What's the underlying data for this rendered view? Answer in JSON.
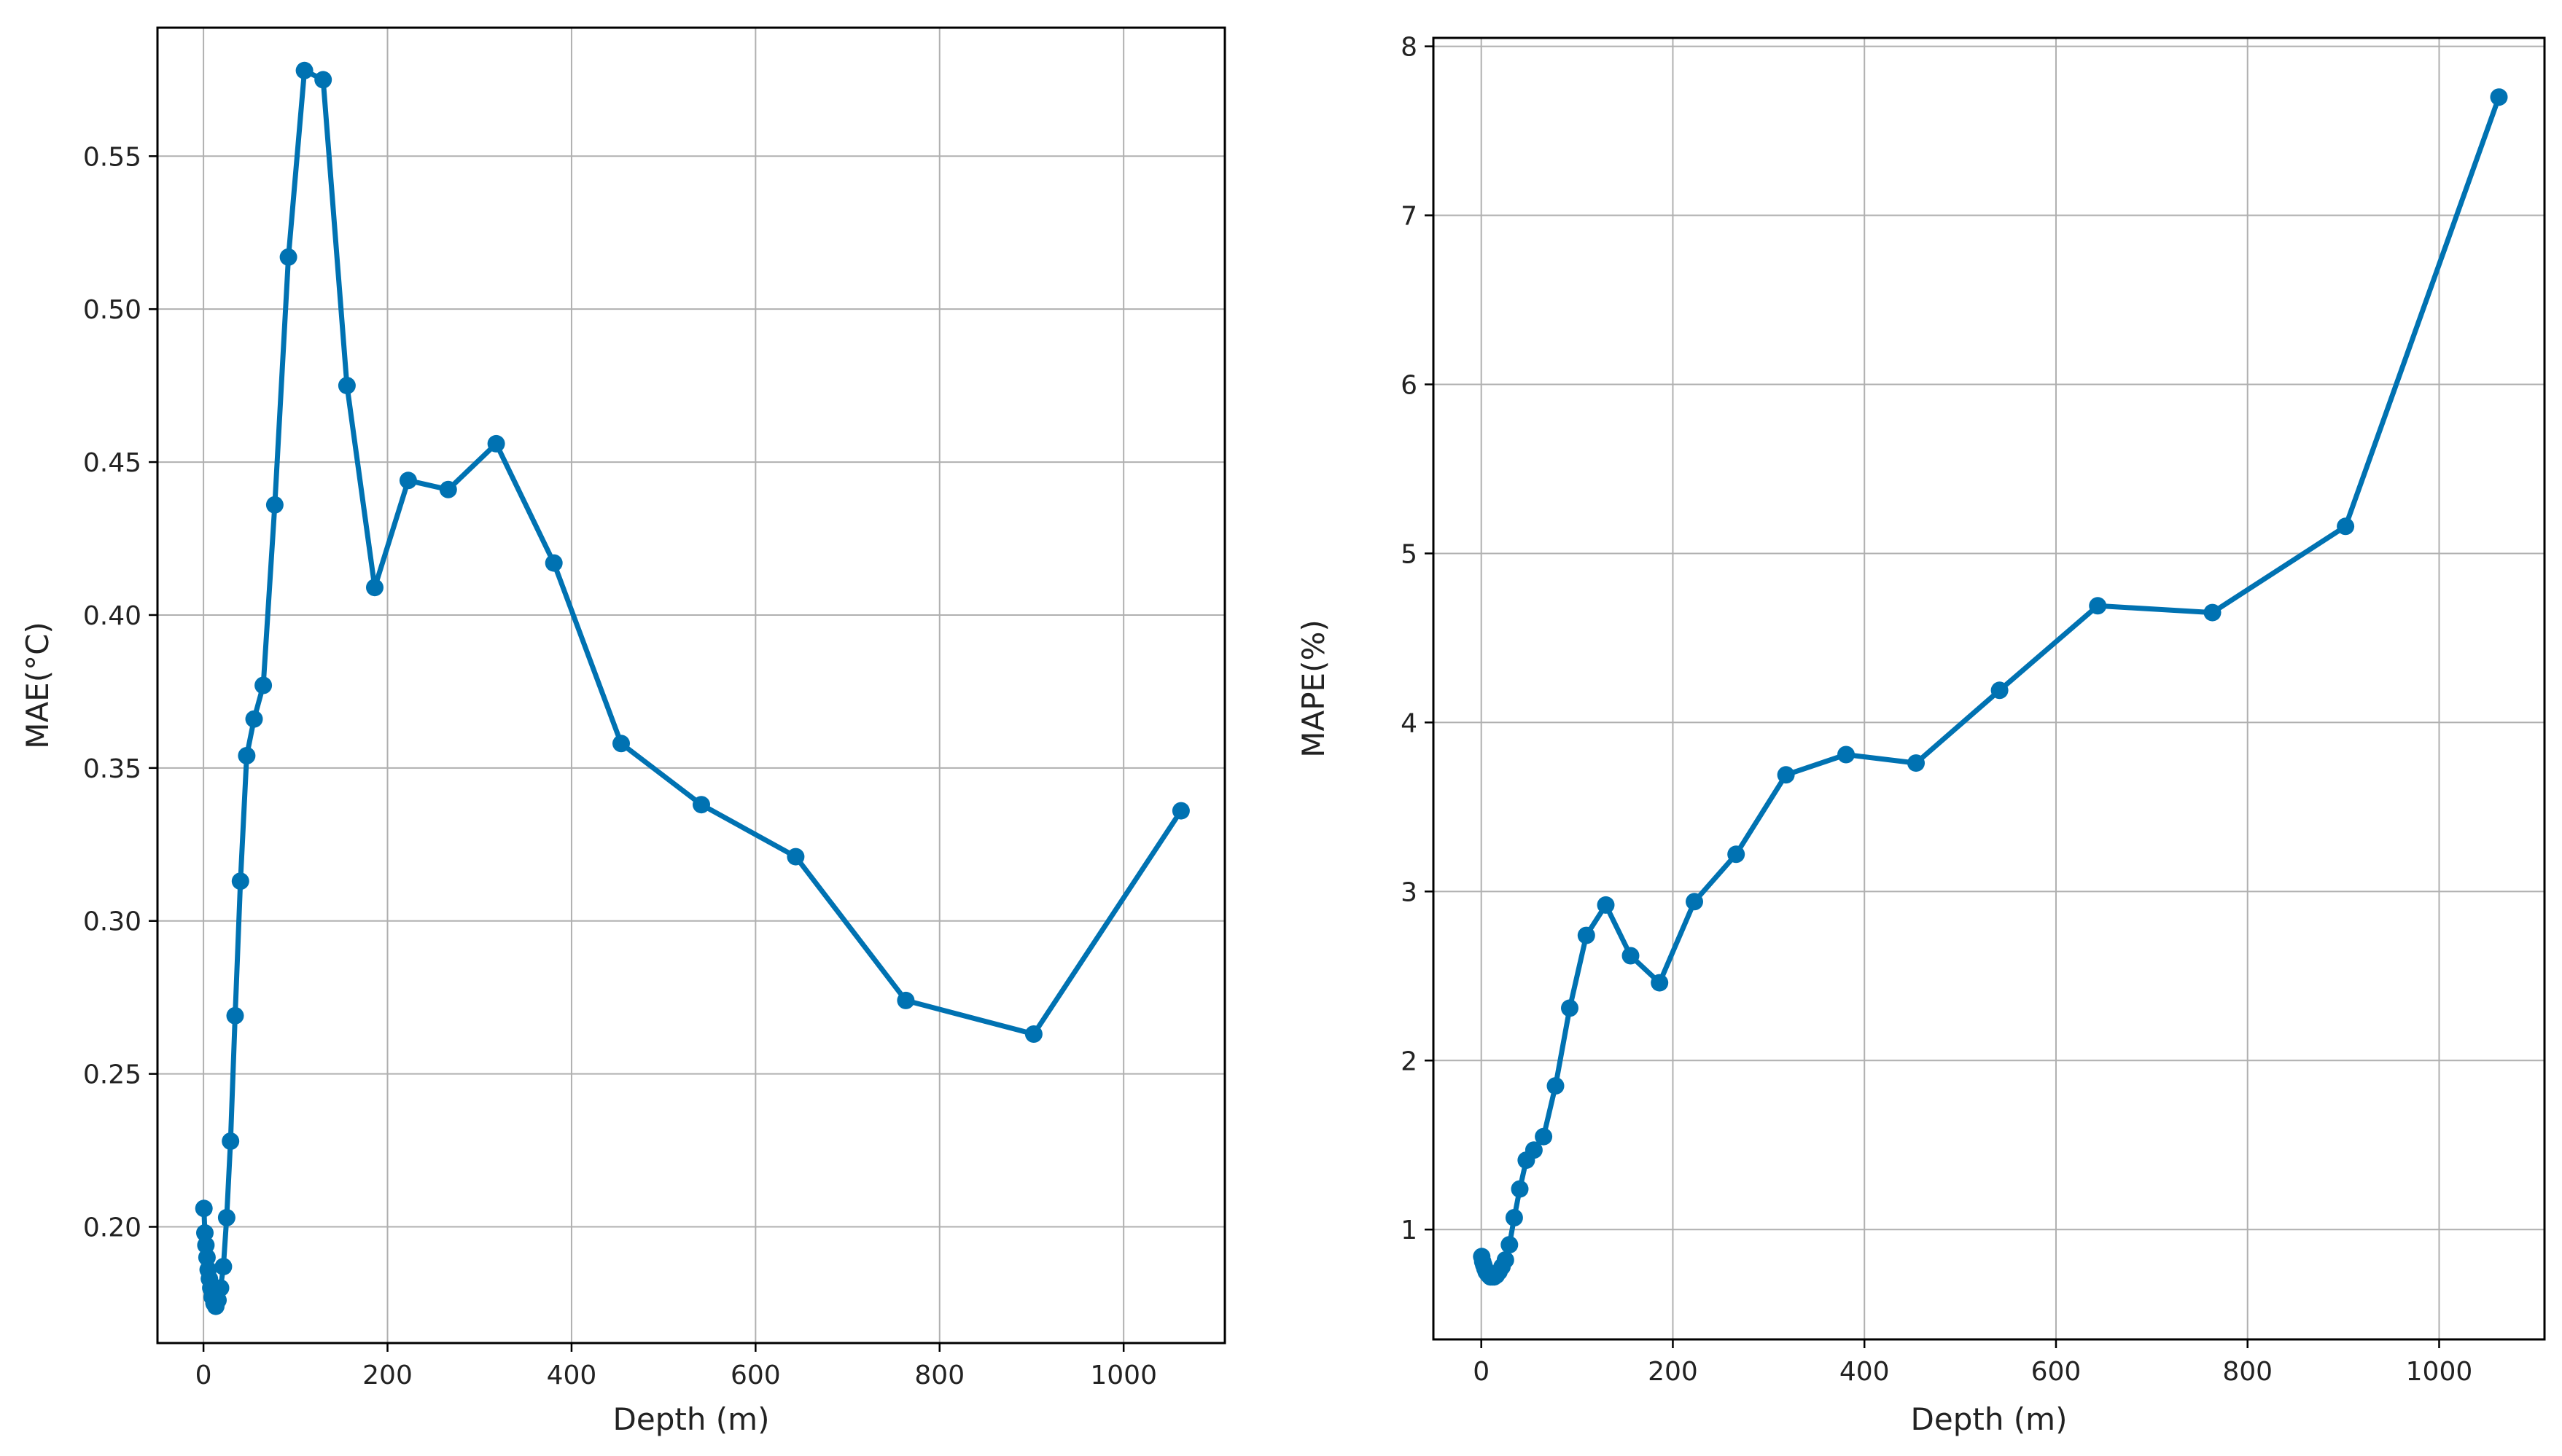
{
  "chart_data": [
    {
      "type": "line",
      "title": "",
      "xlabel": "Depth (m)",
      "ylabel": "MAE(°C)",
      "xlim": [
        -50,
        1110
      ],
      "ylim": [
        0.162,
        0.592
      ],
      "xticks": [
        0,
        200,
        400,
        600,
        800,
        1000
      ],
      "yticks": [
        0.2,
        0.25,
        0.3,
        0.35,
        0.4,
        0.45,
        0.5,
        0.55
      ],
      "ytick_labels": [
        "0.20",
        "0.25",
        "0.30",
        "0.35",
        "0.40",
        "0.45",
        "0.50",
        "0.55"
      ],
      "grid": true,
      "color": "#0072b2",
      "series": [
        {
          "x": [
            0.5,
            1.5,
            2.6,
            3.8,
            5.1,
            6.4,
            7.9,
            9.5,
            11.4,
            13.4,
            15.8,
            18.5,
            21.6,
            25.2,
            29.4,
            34.4,
            40.2,
            47.0,
            55.0,
            65.0,
            77.5,
            92.3,
            109.7,
            130.0,
            155.9,
            186.1,
            222.5,
            266.0,
            318.1,
            380.8,
            453.9,
            541.1,
            643.6,
            763.3,
            902.3,
            1062.4
          ],
          "y": [
            0.206,
            0.198,
            0.194,
            0.19,
            0.186,
            0.183,
            0.18,
            0.177,
            0.175,
            0.174,
            0.176,
            0.18,
            0.187,
            0.203,
            0.228,
            0.269,
            0.313,
            0.354,
            0.366,
            0.377,
            0.436,
            0.517,
            0.578,
            0.575,
            0.475,
            0.409,
            0.444,
            0.441,
            0.456,
            0.417,
            0.358,
            0.338,
            0.321,
            0.274,
            0.263,
            0.336
          ]
        }
      ]
    },
    {
      "type": "line",
      "title": "",
      "xlabel": "Depth (m)",
      "ylabel": "MAPE(%)",
      "xlim": [
        -50,
        1110
      ],
      "ylim": [
        0.35,
        8.05
      ],
      "xticks": [
        0,
        200,
        400,
        600,
        800,
        1000
      ],
      "yticks": [
        1,
        2,
        3,
        4,
        5,
        6,
        7,
        8
      ],
      "ytick_labels": [
        "1",
        "2",
        "3",
        "4",
        "5",
        "6",
        "7",
        "8"
      ],
      "grid": true,
      "color": "#0072b2",
      "series": [
        {
          "x": [
            0.5,
            1.5,
            2.6,
            3.8,
            5.1,
            6.4,
            7.9,
            9.5,
            11.4,
            13.4,
            15.8,
            18.5,
            21.6,
            25.2,
            29.4,
            34.4,
            40.2,
            47.0,
            55.0,
            65.0,
            77.5,
            92.3,
            109.7,
            130.0,
            155.9,
            186.1,
            222.5,
            266.0,
            318.1,
            380.8,
            453.9,
            541.1,
            643.6,
            763.3,
            902.3,
            1062.4
          ],
          "y": [
            0.84,
            0.81,
            0.79,
            0.77,
            0.75,
            0.74,
            0.73,
            0.72,
            0.72,
            0.72,
            0.73,
            0.75,
            0.78,
            0.82,
            0.91,
            1.07,
            1.24,
            1.41,
            1.47,
            1.55,
            1.85,
            2.31,
            2.74,
            2.92,
            2.62,
            2.46,
            2.94,
            3.22,
            3.69,
            3.81,
            3.76,
            4.19,
            4.69,
            4.65,
            5.16,
            7.7
          ]
        }
      ]
    }
  ]
}
